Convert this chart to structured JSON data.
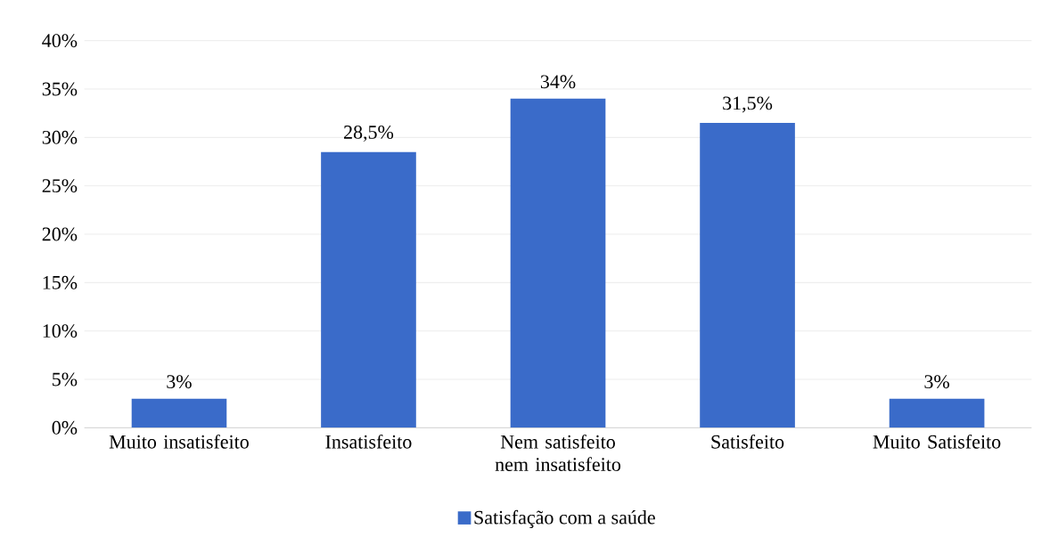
{
  "chart_data": {
    "type": "bar",
    "categories": [
      "Muito insatisfeito",
      "Insatisfeito",
      "Nem satisfeito nem insatisfeito",
      "Satisfeito",
      "Muito Satisfeito"
    ],
    "series": [
      {
        "name": "Satisfação com a saúde",
        "color": "#3a6bc9",
        "values": [
          3,
          28.5,
          34,
          31.5,
          3
        ],
        "value_labels": [
          "3%",
          "28,5%",
          "34%",
          "31,5%",
          "3%"
        ]
      }
    ],
    "ylim": [
      0,
      40
    ],
    "yticks": [
      {
        "value": 0,
        "label": "0%"
      },
      {
        "value": 5,
        "label": "5%"
      },
      {
        "value": 10,
        "label": "10%"
      },
      {
        "value": 15,
        "label": "15%"
      },
      {
        "value": 20,
        "label": "20%"
      },
      {
        "value": 25,
        "label": "25%"
      },
      {
        "value": 30,
        "label": "30%"
      },
      {
        "value": 35,
        "label": "35%"
      },
      {
        "value": 40,
        "label": "40%"
      }
    ],
    "grid": "y",
    "legend": "bottom"
  }
}
